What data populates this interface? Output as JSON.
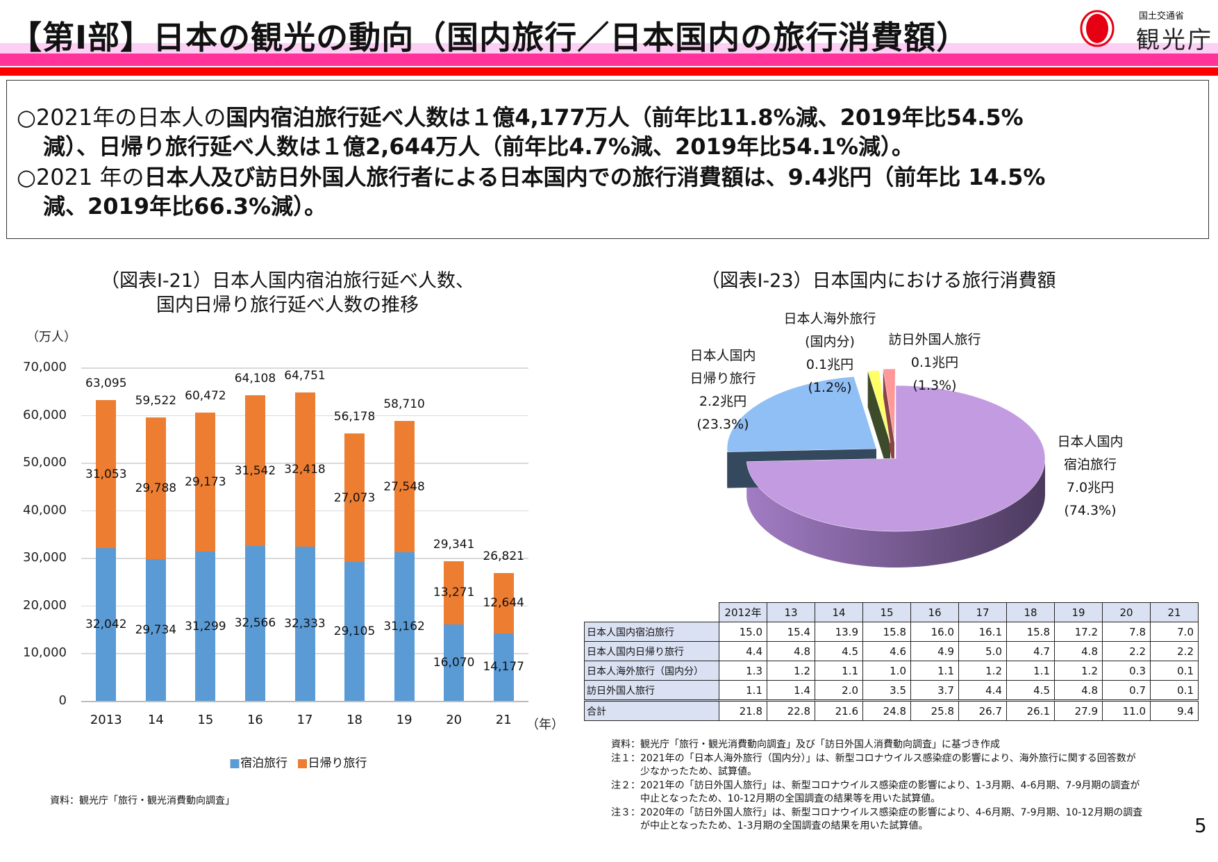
{
  "header": {
    "title": "【第Ⅰ部】日本の観光の動向（国内旅行／日本国内の旅行消費額）",
    "logo_small": "国土交通省",
    "logo_big": "観光庁",
    "band_colors": [
      "#fcd0f4",
      "#ff3399",
      "#ff0000"
    ]
  },
  "summary": {
    "line1_a": "○2021年の日本人の",
    "line1_b": "国内宿泊旅行延べ人数は１億4,177万人（前年比11.8%減、2019年比54.5%",
    "line2": "減）、日帰り旅行延べ人数は１億2,644万人（前年比4.7%減、2019年比54.1%減）。",
    "line3_a": "○2021 年の",
    "line3_b": "日本人及び訪日外国人旅行者による日本国内での旅行消費額は、9.4兆円（前年比 14.5%",
    "line4": "減、2019年比66.3%減）。"
  },
  "chart_data": [
    {
      "type": "bar",
      "stacked": true,
      "title_line1": "（図表Ⅰ-21）日本人国内宿泊旅行延べ人数、",
      "title_line2": "国内日帰り旅行延べ人数の推移",
      "ylabel": "（万人）",
      "xlabel": "（年）",
      "ylim": [
        0,
        70000
      ],
      "yticks": [
        "0",
        "10,000",
        "20,000",
        "30,000",
        "40,000",
        "50,000",
        "60,000",
        "70,000"
      ],
      "grid": true,
      "legend_placement": "bottom",
      "categories": [
        "2013",
        "14",
        "15",
        "16",
        "17",
        "18",
        "19",
        "20",
        "21"
      ],
      "series": [
        {
          "name": "宿泊旅行",
          "color": "#5b9bd5",
          "values": [
            32042,
            29734,
            31299,
            32566,
            32333,
            29105,
            31162,
            16070,
            14177
          ],
          "labels": [
            "32,042",
            "29,734",
            "31,299",
            "32,566",
            "32,333",
            "29,105",
            "31,162",
            "16,070",
            "14,177"
          ]
        },
        {
          "name": "日帰り旅行",
          "color": "#ed7d31",
          "values": [
            31053,
            29788,
            29173,
            31542,
            32418,
            27073,
            27548,
            13271,
            12644
          ],
          "labels": [
            "31,053",
            "29,788",
            "29,173",
            "31,542",
            "32,418",
            "27,073",
            "27,548",
            "13,271",
            "12,644"
          ]
        }
      ],
      "totals": [
        "63,095",
        "59,522",
        "60,472",
        "64,108",
        "64,751",
        "56,178",
        "58,710",
        "29,341",
        "26,821"
      ],
      "source": "資料：観光庁「旅行・観光消費動向調査」"
    },
    {
      "type": "pie",
      "three_d": true,
      "title": "（図表Ⅰ-23）日本国内における旅行消費額",
      "slices": [
        {
          "lines": [
            "日本人国内",
            "宿泊旅行",
            "7.0兆円",
            "(74.3%)"
          ],
          "value": 7.0,
          "percent": 74.3,
          "color": "#c39be0"
        },
        {
          "lines": [
            "日本人国内",
            "日帰り旅行",
            "2.2兆円",
            "(23.3%)"
          ],
          "value": 2.2,
          "percent": 23.3,
          "color": "#8fbff5"
        },
        {
          "lines": [
            "日本人海外旅行",
            "(国内分)",
            "0.1兆円",
            "(1.2%)"
          ],
          "value": 0.1,
          "percent": 1.2,
          "color": "#ffff66"
        },
        {
          "lines": [
            "訪日外国人旅行",
            "0.1兆円",
            "(1.3%)"
          ],
          "value": 0.1,
          "percent": 1.3,
          "color": "#ff9999"
        }
      ]
    }
  ],
  "table": {
    "header": [
      "2012年",
      "13",
      "14",
      "15",
      "16",
      "17",
      "18",
      "19",
      "20",
      "21"
    ],
    "rows": [
      {
        "label": "日本人国内宿泊旅行",
        "values": [
          "15.0",
          "15.4",
          "13.9",
          "15.8",
          "16.0",
          "16.1",
          "15.8",
          "17.2",
          "7.8",
          "7.0"
        ]
      },
      {
        "label": "日本人国内日帰り旅行",
        "values": [
          "4.4",
          "4.8",
          "4.5",
          "4.6",
          "4.9",
          "5.0",
          "4.7",
          "4.8",
          "2.2",
          "2.2"
        ]
      },
      {
        "label": "日本人海外旅行（国内分）",
        "values": [
          "1.3",
          "1.2",
          "1.1",
          "1.0",
          "1.1",
          "1.2",
          "1.1",
          "1.2",
          "0.3",
          "0.1"
        ]
      },
      {
        "label": "訪日外国人旅行",
        "values": [
          "1.1",
          "1.4",
          "2.0",
          "3.5",
          "3.7",
          "4.4",
          "4.5",
          "4.8",
          "0.7",
          "0.1"
        ]
      },
      {
        "label": "合計",
        "values": [
          "21.8",
          "22.8",
          "21.6",
          "24.8",
          "25.8",
          "26.7",
          "26.1",
          "27.9",
          "11.0",
          "9.4"
        ]
      }
    ]
  },
  "notes": [
    "資料：観光庁「旅行・観光消費動向調査」及び「訪日外国人消費動向調査」に基づき作成",
    "注１：2021年の「日本人海外旅行（国内分）」は、新型コロナウイルス感染症の影響により、海外旅行に関する回答数が",
    "　　　少なかったため、試算値。",
    "注２：2021年の「訪日外国人旅行」は、新型コロナウイルス感染症の影響により、1-3月期、4-6月期、7-9月期の調査が",
    "　　　中止となったため、10-12月期の全国調査の結果等を用いた試算値。",
    "注３：2020年の「訪日外国人旅行」は、新型コロナウイルス感染症の影響により、4-6月期、7-9月期、10-12月期の調査",
    "　　　が中止となったため、1-3月期の全国調査の結果を用いた試算値。"
  ],
  "page_number": "5"
}
